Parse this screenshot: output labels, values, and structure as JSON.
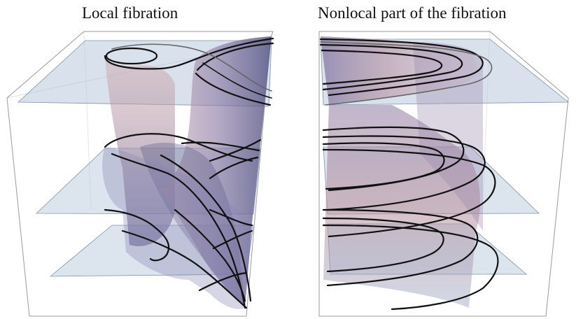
{
  "panels": {
    "left": {
      "title": "Local fibration"
    },
    "right": {
      "title": "Nonlocal part of the fibration"
    }
  },
  "colors": {
    "background": "#ffffff",
    "plane_fill": "#b9c9dd",
    "plane_edge": "#7f92a8",
    "surface_rose": "#c49aaa",
    "surface_violet": "#6e6a99",
    "curve": "#111111",
    "box_edge": "#9a9a9a"
  }
}
